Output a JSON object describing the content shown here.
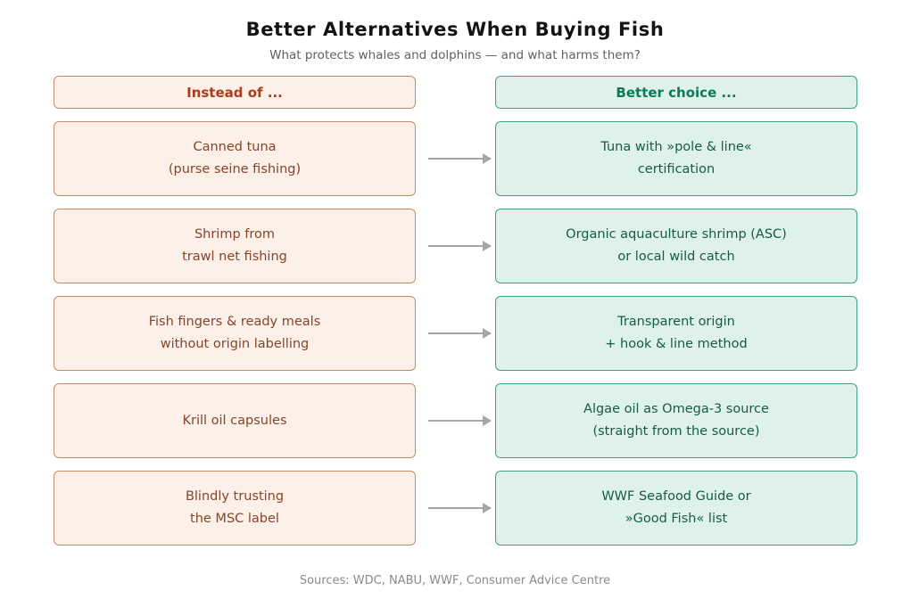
{
  "title": "Better Alternatives When Buying Fish",
  "subtitle": "What protects whales and dolphins — and what harms them?",
  "columns": {
    "left_header": "Instead of ...",
    "right_header": "Better choice ..."
  },
  "rows": [
    {
      "instead": "Canned tuna\n(purse seine fishing)",
      "better": "Tuna with »pole & line«\ncertification"
    },
    {
      "instead": "Shrimp from\ntrawl net fishing",
      "better": "Organic aquaculture shrimp (ASC)\nor local wild catch"
    },
    {
      "instead": "Fish fingers & ready meals\nwithout origin labelling",
      "better": "Transparent origin\n+ hook & line method"
    },
    {
      "instead": "Krill oil capsules",
      "better": "Algae oil as Omega-3 source\n(straight from the source)"
    },
    {
      "instead": "Blindly trusting\nthe MSC label",
      "better": "WWF Seafood Guide or\n»Good Fish« list"
    }
  ],
  "footer": "Sources: WDC, NABU, WWF, Consumer Advice Centre",
  "colors": {
    "instead_bg": "#fcf0e8",
    "instead_border": "#c98b66",
    "instead_header_text": "#a63e1f",
    "instead_text": "#84452a",
    "better_bg": "#dff2ea",
    "better_border": "#3f9f85",
    "better_header_text": "#0b7a5c",
    "better_text": "#175a49",
    "arrow": "#a6a6a6"
  }
}
